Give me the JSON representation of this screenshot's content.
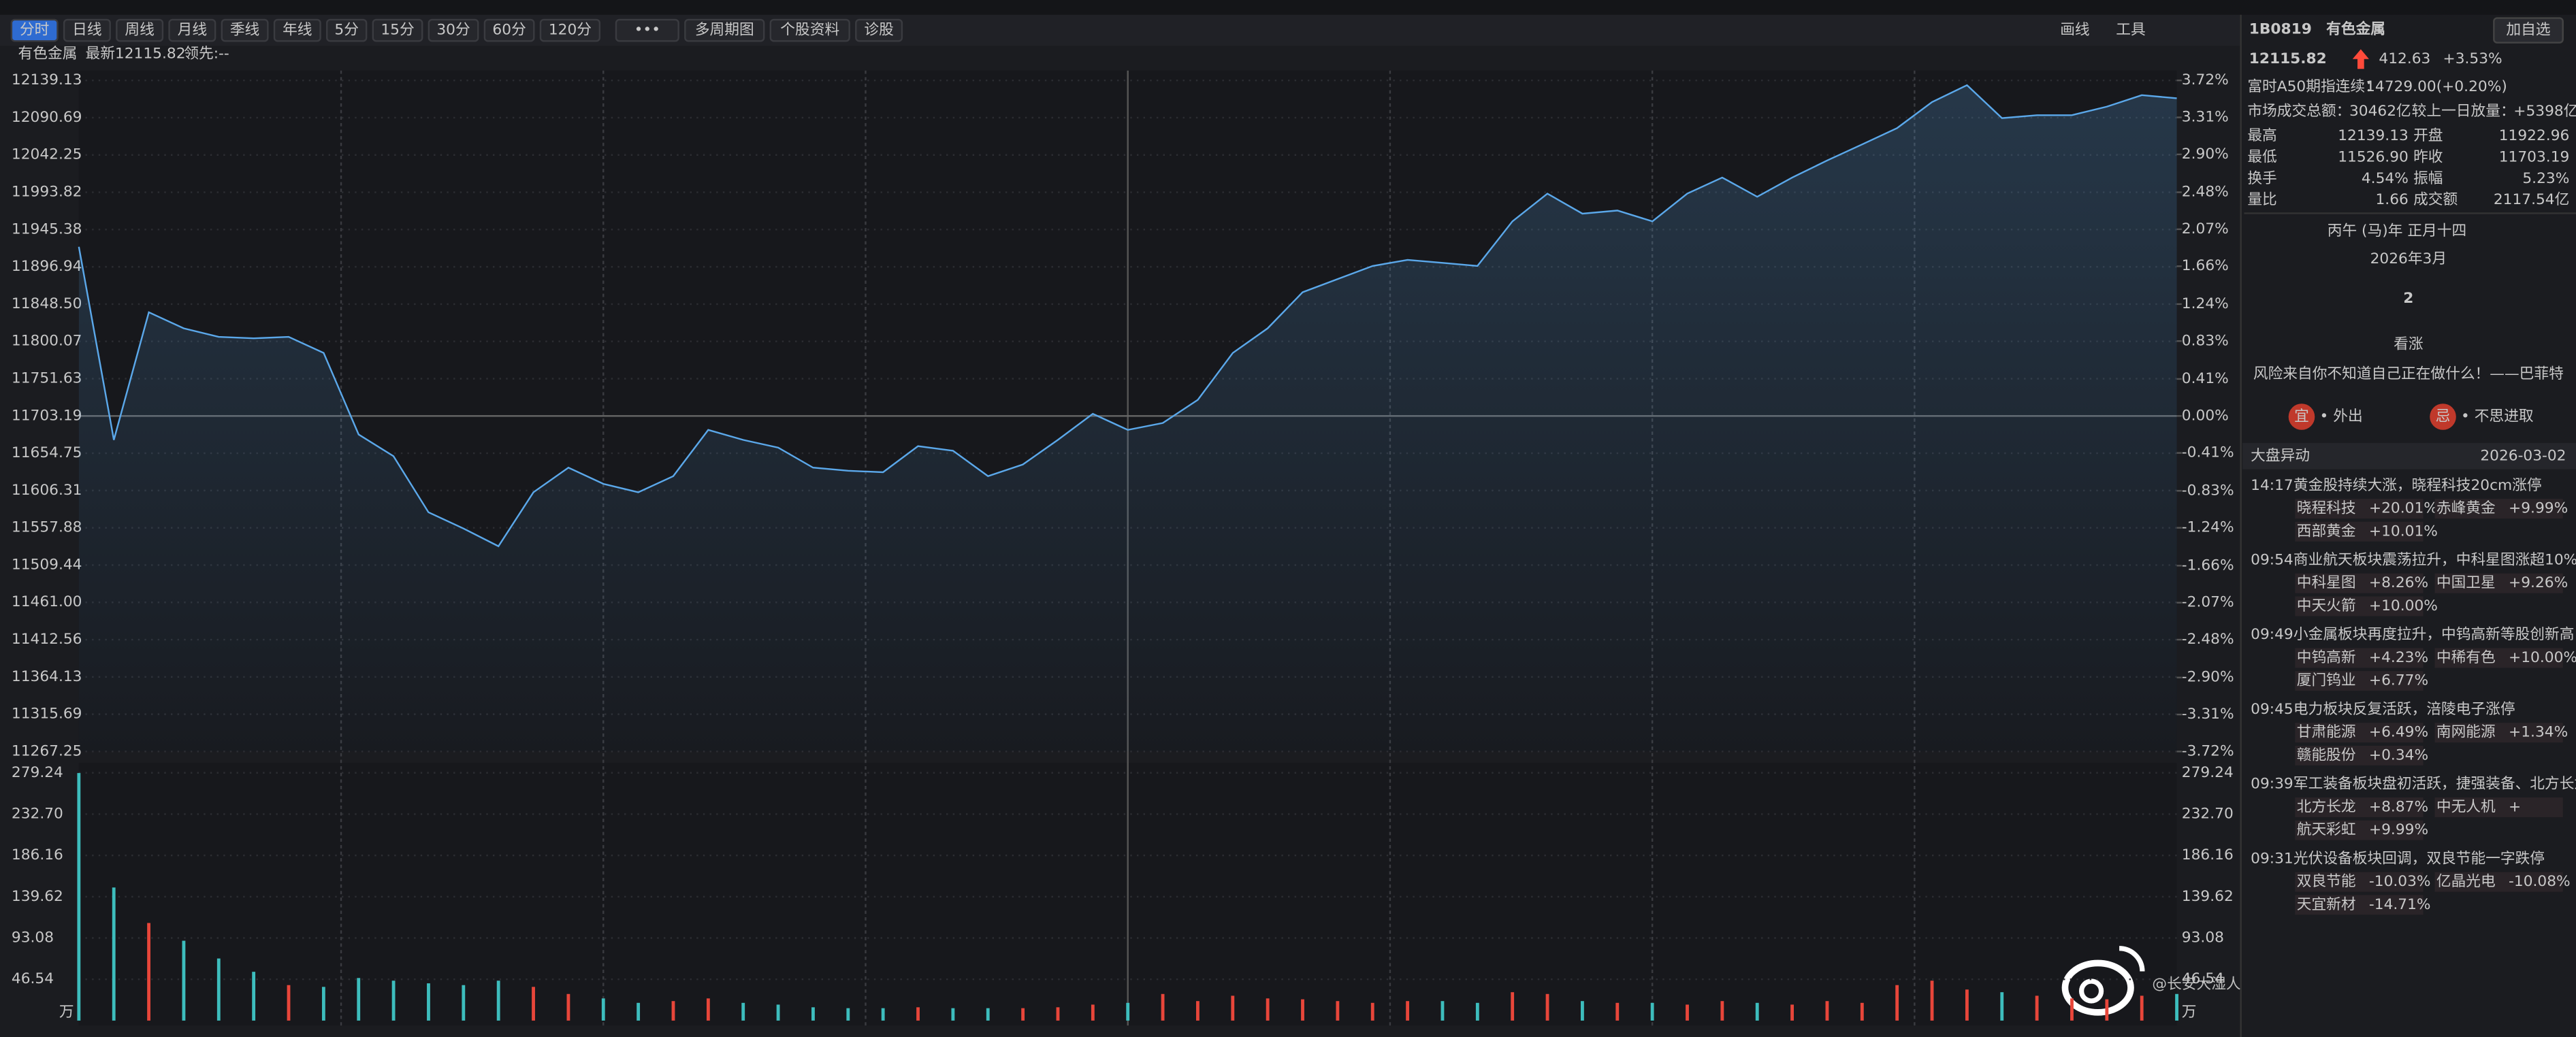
{
  "toolbar": {
    "periods": [
      "分时",
      "日线",
      "周线",
      "月线",
      "季线",
      "年线",
      "5分",
      "15分",
      "30分",
      "60分",
      "120分"
    ],
    "more": "•••",
    "buttons": [
      "多周期图",
      "个股资料",
      "诊股"
    ],
    "draw": "画线",
    "tools": "工具"
  },
  "chart_header": {
    "name": "有色金属",
    "latest": "最新12115.82",
    "lead": "领先:--"
  },
  "chart_data": [
    {
      "type": "area",
      "color": "#5ba8ea",
      "x": [
        0,
        4,
        8,
        12,
        16,
        20,
        24,
        28,
        32,
        36,
        40,
        44,
        48,
        52,
        56,
        60,
        64,
        68,
        72,
        76,
        80,
        84,
        88,
        92,
        96,
        100,
        104,
        108,
        112,
        116,
        120,
        124,
        128,
        132,
        136,
        140,
        144,
        148,
        152,
        156,
        160,
        164,
        168,
        172,
        176,
        180,
        184,
        188,
        192,
        196,
        200,
        204,
        208,
        212,
        216,
        220,
        224,
        228,
        232,
        236,
        240
      ],
      "values": [
        11923,
        11672,
        11838,
        11817,
        11806,
        11804,
        11806,
        11785,
        11679,
        11651,
        11578,
        11557,
        11534,
        11604,
        11636,
        11615,
        11604,
        11625,
        11685,
        11672,
        11662,
        11636,
        11632,
        11630,
        11664,
        11658,
        11625,
        11640,
        11672,
        11706,
        11685,
        11694,
        11724,
        11785,
        11817,
        11864,
        11881,
        11898,
        11906,
        11902,
        11898,
        11956,
        11992,
        11966,
        11970,
        11956,
        11992,
        12013,
        11988,
        12013,
        12035,
        12056,
        12077,
        12111,
        12133,
        12090,
        12094,
        12094,
        12105,
        12120,
        12116
      ],
      "xlim": [
        0,
        240
      ],
      "xticks": [
        30,
        60,
        90,
        120,
        150,
        180,
        210
      ],
      "ylim": [
        11267.25,
        12139.13
      ],
      "yticks": [
        12139.13,
        12090.69,
        12042.25,
        11993.82,
        11945.38,
        11896.94,
        {
          "value": 11848.5,
          "label": "11848.50"
        },
        11800.07,
        11751.63,
        11703.19,
        11654.75,
        11606.31,
        11557.88,
        11509.44,
        {
          "value": 11461,
          "label": "11461.00"
        },
        11412.56,
        11364.13,
        11315.69,
        11267.25
      ],
      "y2lim": [
        -3.72,
        3.72
      ],
      "y2ticks": [
        {
          "value": 3.72,
          "label": "3.72%"
        },
        {
          "value": 3.31,
          "label": "3.31%"
        },
        {
          "value": 2.9,
          "label": "2.90%"
        },
        {
          "value": 2.48,
          "label": "2.48%"
        },
        {
          "value": 2.07,
          "label": "2.07%"
        },
        {
          "value": 1.66,
          "label": "1.66%"
        },
        {
          "value": 1.24,
          "label": "1.24%"
        },
        {
          "value": 0.83,
          "label": "0.83%"
        },
        {
          "value": 0.41,
          "label": "0.41%"
        },
        {
          "value": 0,
          "label": "0.00%"
        },
        {
          "value": -0.41,
          "label": "-0.41%"
        },
        {
          "value": -0.83,
          "label": "-0.83%"
        },
        {
          "value": -1.24,
          "label": "-1.24%"
        },
        {
          "value": -1.66,
          "label": "-1.66%"
        },
        {
          "value": -2.07,
          "label": "-2.07%"
        },
        {
          "value": -2.48,
          "label": "-2.48%"
        },
        {
          "value": -2.9,
          "label": "-2.90%"
        },
        {
          "value": -3.31,
          "label": "-3.31%"
        },
        {
          "value": -3.72,
          "label": "-3.72%"
        }
      ],
      "grid": true
    },
    {
      "type": "bar",
      "unit": "万",
      "x": [
        0,
        4,
        8,
        12,
        16,
        20,
        24,
        28,
        32,
        36,
        40,
        44,
        48,
        52,
        56,
        60,
        64,
        68,
        72,
        76,
        80,
        84,
        88,
        92,
        96,
        100,
        104,
        108,
        112,
        116,
        120,
        124,
        128,
        132,
        136,
        140,
        144,
        148,
        152,
        156,
        160,
        164,
        168,
        172,
        176,
        180,
        184,
        188,
        192,
        196,
        200,
        204,
        208,
        212,
        216,
        220,
        224,
        228,
        232,
        236,
        240
      ],
      "values": [
        279,
        150,
        110,
        90,
        70,
        55,
        40,
        38,
        48,
        45,
        42,
        40,
        45,
        38,
        30,
        25,
        20,
        22,
        25,
        20,
        18,
        15,
        14,
        14,
        15,
        14,
        14,
        14,
        15,
        18,
        20,
        30,
        22,
        28,
        25,
        24,
        22,
        20,
        22,
        22,
        20,
        32,
        30,
        22,
        20,
        20,
        18,
        22,
        20,
        18,
        22,
        20,
        40,
        45,
        35,
        32,
        28,
        25,
        24,
        28,
        30
      ],
      "colors": [
        "#3dbdbd",
        "#3dbdbd",
        "#e8463a",
        "#3dbdbd",
        "#3dbdbd",
        "#3dbdbd",
        "#e8463a",
        "#3dbdbd",
        "#3dbdbd",
        "#3dbdbd",
        "#3dbdbd",
        "#3dbdbd",
        "#3dbdbd",
        "#e8463a",
        "#e8463a",
        "#3dbdbd",
        "#3dbdbd",
        "#e8463a",
        "#e8463a",
        "#3dbdbd",
        "#3dbdbd",
        "#3dbdbd",
        "#3dbdbd",
        "#3dbdbd",
        "#e8463a",
        "#3dbdbd",
        "#3dbdbd",
        "#e8463a",
        "#e8463a",
        "#e8463a",
        "#3dbdbd",
        "#e8463a",
        "#e8463a",
        "#e8463a",
        "#e8463a",
        "#e8463a",
        "#e8463a",
        "#e8463a",
        "#e8463a",
        "#3dbdbd",
        "#3dbdbd",
        "#e8463a",
        "#e8463a",
        "#3dbdbd",
        "#e8463a",
        "#3dbdbd",
        "#e8463a",
        "#e8463a",
        "#3dbdbd",
        "#e8463a",
        "#e8463a",
        "#e8463a",
        "#e8463a",
        "#e8463a",
        "#e8463a",
        "#3dbdbd",
        "#e8463a",
        "#e8463a",
        "#e8463a",
        "#e8463a",
        "#3dbdbd"
      ],
      "xlim": [
        0,
        240
      ],
      "ylim": [
        0,
        279.24
      ],
      "yticks": [
        279.24,
        {
          "value": 232.7,
          "label": "232.70"
        },
        186.16,
        139.62,
        93.08,
        46.54
      ]
    }
  ],
  "quote": {
    "code": "1B0819",
    "name": "有色金属",
    "add": "加自选",
    "price": "12115.82",
    "change": "412.63",
    "pct": "+3.53%",
    "a50_label": "富时A50期指连续：",
    "a50_value": "14729.00(+0.20%)",
    "turnover_label": "市场成交总额：",
    "turnover_value": "30462亿",
    "diff_label": "较上一日放量：",
    "diff_value": "+5398亿",
    "rows": [
      [
        "最高",
        "12139.13",
        "开盘",
        "11922.96"
      ],
      [
        "最低",
        "11526.90",
        "昨收",
        "11703.19"
      ],
      [
        "换手",
        "4.54%",
        "振幅",
        "5.23%"
      ],
      [
        "量比",
        "1.66",
        "成交额",
        "2117.54亿"
      ]
    ]
  },
  "calendar": {
    "lunar": "丙午 (马)年 正月十四",
    "month": "2026年3月",
    "day": "2",
    "mood": "看涨",
    "quote": "风险来自你不知道自己正在做什么！——巴菲特",
    "good": "宜",
    "good_text": "• 外出",
    "bad": "忌",
    "bad_text": "• 不思进取"
  },
  "news": {
    "title": "大盘异动",
    "date": "2026-03-02",
    "items": [
      {
        "time": "14:17",
        "text": "黄金股持续大涨，晓程科技20cm涨停",
        "tags": [
          [
            "晓程科技",
            "+20.01%"
          ],
          [
            "赤峰黄金",
            "+9.99%"
          ],
          [
            "西部黄金",
            "+10.01%"
          ]
        ]
      },
      {
        "time": "09:54",
        "text": "商业航天板块震荡拉升，中科星图涨超10%",
        "tags": [
          [
            "中科星图",
            "+8.26%"
          ],
          [
            "中国卫星",
            "+9.26%"
          ],
          [
            "中天火箭",
            "+10.00%"
          ]
        ]
      },
      {
        "time": "09:49",
        "text": "小金属板块再度拉升，中钨高新等股创新高",
        "tags": [
          [
            "中钨高新",
            "+4.23%"
          ],
          [
            "中稀有色",
            "+10.00%"
          ],
          [
            "厦门钨业",
            "+6.77%"
          ]
        ]
      },
      {
        "time": "09:45",
        "text": "电力板块反复活跃，涪陵电子涨停",
        "tags": [
          [
            "甘肃能源",
            "+6.49%"
          ],
          [
            "南网能源",
            "+1.34%"
          ],
          [
            "赣能股份",
            "+0.34%"
          ]
        ]
      },
      {
        "time": "09:39",
        "text": "军工装备板块盘初活跃，捷强装备、北方长龙",
        "tags": [
          [
            "北方长龙",
            "+8.87%"
          ],
          [
            "中无人机",
            "+"
          ],
          [
            "航天彩虹",
            "+9.99%"
          ]
        ]
      },
      {
        "time": "09:31",
        "text": "光伏设备板块回调，双良节能一字跌停",
        "tags": [
          [
            "双良节能",
            "-10.03%"
          ],
          [
            "亿晶光电",
            "-10.08%"
          ],
          [
            "天宜新材",
            "-14.71%"
          ]
        ]
      }
    ]
  },
  "watermark": "@长安大湿人"
}
